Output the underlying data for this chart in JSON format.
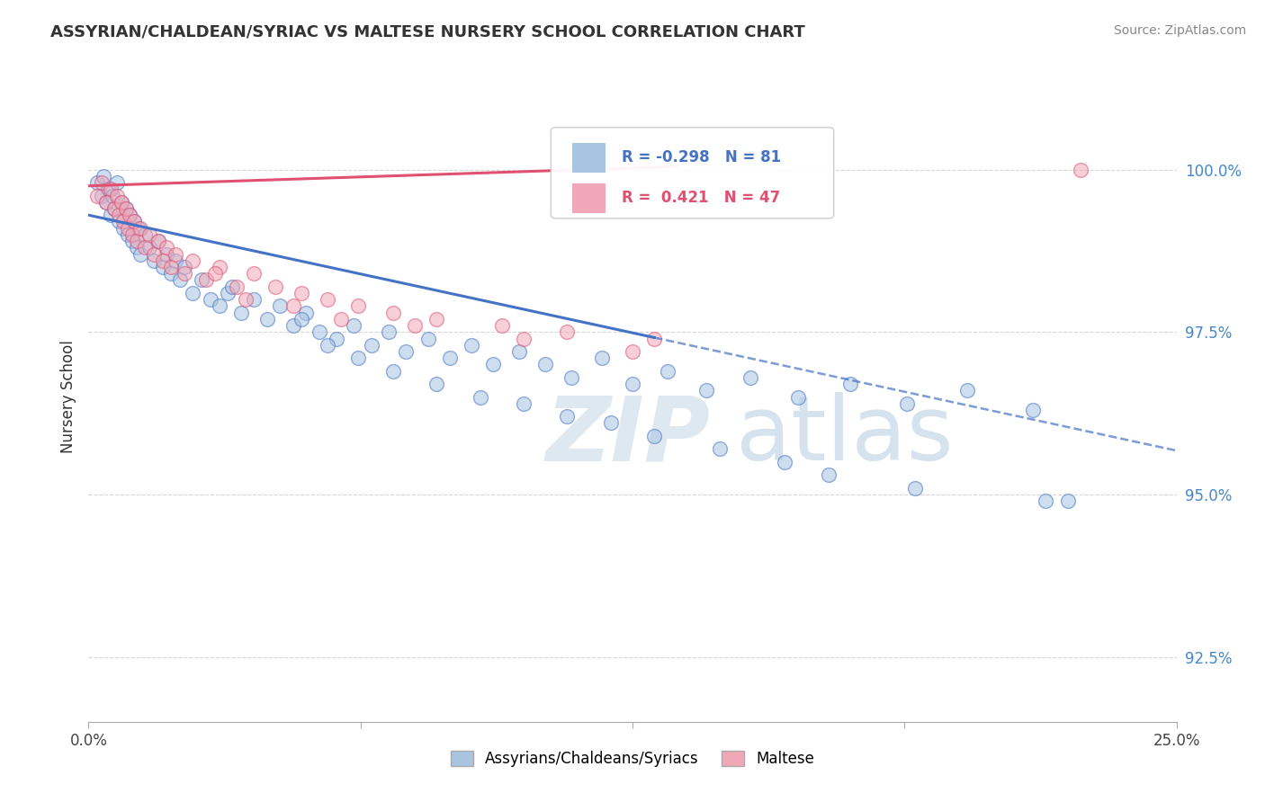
{
  "title": "ASSYRIAN/CHALDEAN/SYRIAC VS MALTESE NURSERY SCHOOL CORRELATION CHART",
  "source": "Source: ZipAtlas.com",
  "xlabel": "",
  "ylabel": "Nursery School",
  "xmin": 0.0,
  "xmax": 25.0,
  "ymin": 91.5,
  "ymax": 101.5,
  "yticks": [
    92.5,
    95.0,
    97.5,
    100.0
  ],
  "ytick_labels": [
    "92.5%",
    "95.0%",
    "97.5%",
    "100.0%"
  ],
  "legend_label1": "Assyrians/Chaldeans/Syriacs",
  "legend_label2": "Maltese",
  "r1": -0.298,
  "n1": 81,
  "r2": 0.421,
  "n2": 47,
  "color1": "#a8c4e0",
  "color2": "#f0a8b8",
  "trendline1_color": "#4472c4",
  "trendline2_color": "#e05070",
  "blue_intercept": 99.3,
  "blue_slope": -0.145,
  "blue_solid_end": 13.0,
  "blue_dash_end": 25.0,
  "pink_intercept": 99.75,
  "pink_slope": 0.022,
  "pink_end": 13.5,
  "blue_points_x": [
    0.2,
    0.3,
    0.35,
    0.4,
    0.45,
    0.5,
    0.55,
    0.6,
    0.65,
    0.7,
    0.75,
    0.8,
    0.85,
    0.9,
    0.95,
    1.0,
    1.05,
    1.1,
    1.15,
    1.2,
    1.3,
    1.4,
    1.5,
    1.6,
    1.7,
    1.8,
    1.9,
    2.0,
    2.1,
    2.2,
    2.4,
    2.6,
    2.8,
    3.0,
    3.2,
    3.5,
    3.8,
    4.1,
    4.4,
    4.7,
    5.0,
    5.3,
    5.7,
    6.1,
    6.5,
    6.9,
    7.3,
    7.8,
    8.3,
    8.8,
    9.3,
    9.9,
    10.5,
    11.1,
    11.8,
    12.5,
    13.3,
    14.2,
    15.2,
    16.3,
    17.5,
    18.8,
    20.2,
    21.7,
    22.0,
    3.3,
    4.9,
    5.5,
    6.2,
    7.0,
    8.0,
    9.0,
    10.0,
    11.0,
    12.0,
    13.0,
    14.5,
    16.0,
    17.0,
    19.0,
    22.5
  ],
  "blue_points_y": [
    99.8,
    99.6,
    99.9,
    99.5,
    99.7,
    99.3,
    99.6,
    99.4,
    99.8,
    99.2,
    99.5,
    99.1,
    99.4,
    99.0,
    99.3,
    98.9,
    99.2,
    98.8,
    99.1,
    98.7,
    99.0,
    98.8,
    98.6,
    98.9,
    98.5,
    98.7,
    98.4,
    98.6,
    98.3,
    98.5,
    98.1,
    98.3,
    98.0,
    97.9,
    98.1,
    97.8,
    98.0,
    97.7,
    97.9,
    97.6,
    97.8,
    97.5,
    97.4,
    97.6,
    97.3,
    97.5,
    97.2,
    97.4,
    97.1,
    97.3,
    97.0,
    97.2,
    97.0,
    96.8,
    97.1,
    96.7,
    96.9,
    96.6,
    96.8,
    96.5,
    96.7,
    96.4,
    96.6,
    96.3,
    94.9,
    98.2,
    97.7,
    97.3,
    97.1,
    96.9,
    96.7,
    96.5,
    96.4,
    96.2,
    96.1,
    95.9,
    95.7,
    95.5,
    95.3,
    95.1,
    94.9
  ],
  "pink_points_x": [
    0.2,
    0.3,
    0.4,
    0.5,
    0.6,
    0.65,
    0.7,
    0.75,
    0.8,
    0.85,
    0.9,
    0.95,
    1.0,
    1.05,
    1.1,
    1.2,
    1.3,
    1.4,
    1.5,
    1.6,
    1.7,
    1.8,
    1.9,
    2.0,
    2.2,
    2.4,
    2.7,
    3.0,
    3.4,
    3.8,
    4.3,
    4.9,
    5.5,
    6.2,
    7.0,
    8.0,
    9.5,
    11.0,
    13.0,
    2.9,
    3.6,
    4.7,
    5.8,
    7.5,
    10.0,
    12.5,
    22.8
  ],
  "pink_points_y": [
    99.6,
    99.8,
    99.5,
    99.7,
    99.4,
    99.6,
    99.3,
    99.5,
    99.2,
    99.4,
    99.1,
    99.3,
    99.0,
    99.2,
    98.9,
    99.1,
    98.8,
    99.0,
    98.7,
    98.9,
    98.6,
    98.8,
    98.5,
    98.7,
    98.4,
    98.6,
    98.3,
    98.5,
    98.2,
    98.4,
    98.2,
    98.1,
    98.0,
    97.9,
    97.8,
    97.7,
    97.6,
    97.5,
    97.4,
    98.4,
    98.0,
    97.9,
    97.7,
    97.6,
    97.4,
    97.2,
    100.0
  ]
}
